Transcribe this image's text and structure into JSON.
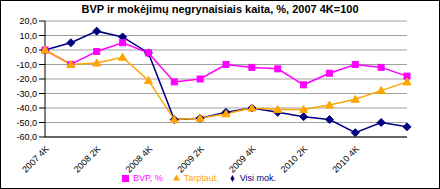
{
  "chart_data": {
    "type": "line",
    "title": "BVP ir mokėjimų negrynaisiais kaita, %, 2007 4K=100",
    "categories": [
      "2007 4K",
      null,
      "2008 2K",
      null,
      "2008 4K",
      null,
      "2009 2K",
      null,
      "2009 4K",
      null,
      "2010 2K",
      null,
      "2010 4K",
      null,
      null
    ],
    "series": [
      {
        "name": "Visi mok.",
        "color": "#000080",
        "marker": "diamond",
        "values": [
          0,
          5,
          13,
          9,
          -2,
          -48,
          -47,
          -43,
          -40,
          -43,
          -46,
          -48,
          -57,
          -50,
          -53
        ]
      },
      {
        "name": "BVP, %",
        "color": "#ff00ff",
        "marker": "square",
        "values": [
          0,
          -10,
          -1,
          5,
          -2,
          -22,
          -20,
          -10,
          -12,
          -13,
          -24,
          -16,
          -10,
          -12,
          -18
        ]
      },
      {
        "name": "Tarptaut.",
        "color": "#ffa500",
        "marker": "triangle",
        "values": [
          0,
          -10,
          -9,
          -5,
          -21,
          -48,
          -47,
          -44,
          -40,
          -41,
          -41,
          -38,
          -34,
          -28,
          -22
        ]
      }
    ],
    "ylim": [
      -60,
      20
    ],
    "yticks": [
      {
        "value": -60,
        "label": "-60,0"
      },
      {
        "value": -50,
        "label": "-50,0"
      },
      {
        "value": -40,
        "label": "-40,0"
      },
      {
        "value": -30,
        "label": "-30,0"
      },
      {
        "value": -20,
        "label": "-20,0"
      },
      {
        "value": -10,
        "label": "-10,0"
      },
      {
        "value": 0,
        "label": "0,0"
      },
      {
        "value": 10,
        "label": "10,0"
      },
      {
        "value": 20,
        "label": "20,0"
      }
    ],
    "grid": true,
    "legend": "bottom"
  }
}
